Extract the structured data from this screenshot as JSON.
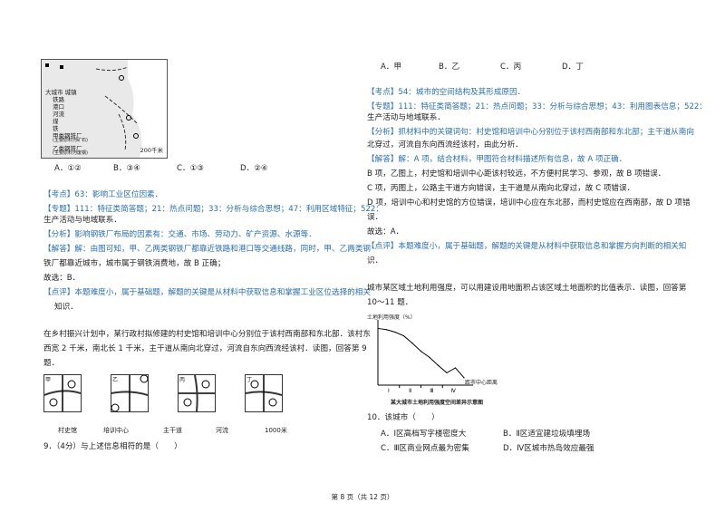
{
  "left": {
    "map_legend": [
      "大城市 城镇",
      "铁路",
      "港口",
      "河流",
      "煤",
      "铁",
      "甲类钢铁厂",
      "(主要原料为矿石)",
      "乙类钢铁厂",
      "(主要原料为废钢)"
    ],
    "map_scale": "200千米",
    "q8_options": [
      "A．①②",
      "B．③④",
      "C．①③",
      "D．②④"
    ],
    "q8_kaodian": "【考点】63：影响工业区位因素．",
    "q8_zhuanti_1": "【专题】111：特征类简答题；21：热点问题；33：分析与综合思想；47：利用区域特征；522：",
    "q8_zhuanti_2": "生产活动与地域联系．",
    "q8_fenxi": "【分析】影响钢铁厂布局的因素有：交通、市场、劳动力、矿产资源、水源等．",
    "q8_jieda_1": "【解答】解：由图可知，甲、乙两类钢铁厂都靠近铁路和港口等交通线路，同时，甲、乙两类钢",
    "q8_jieda_2": "铁厂都靠近城市，城市属于钢铁消费地，故 B 正确；",
    "q8_guxuan": "故选：B．",
    "q8_dianping_1": "【点评】本题难度小，属于基础题，解题的关键是从材料中获取信息和掌握工业区位选择的相关",
    "q8_dianping_2": "知识．",
    "q9_stem_1": "在乡村振兴计划中，某行政村拟修建的村史馆和培训中心分别位于该村西南部和东北部．该村东",
    "q9_stem_2": "西宽 2 千米，南北长 1 千米，主干道从南向北穿过，河流自东向西流经该村．读图，回答第 9",
    "q9_stem_3": "题．",
    "panels": [
      "甲",
      "乙",
      "丙",
      "丁"
    ],
    "panel_legend": [
      "村史馆",
      "培训中心",
      "主干道",
      "河流"
    ],
    "panel_scale": "1000米",
    "q9_question": "9．（4分）与上述信息相符的是（　　）",
    "footer": "第 8 页（共 12 页）"
  },
  "right": {
    "q9_options": [
      "A．甲",
      "B．乙",
      "C．丙",
      "D．丁"
    ],
    "q9_kaodian": "【考点】54：城市的空间结构及其形成原因．",
    "q9_zhuanti_1": "【专题】111：特征类简答题；21：热点问题；33：分析与综合思想；43：利用图表信息；522：",
    "q9_zhuanti_2": "生产活动与地域联系．",
    "q9_fenxi_1": "【分析】抓材料中的关键词句：村史馆和培训中心分别位于该村西南部和东北部；主干道从南向",
    "q9_fenxi_2": "北穿过，河流自东向西流经该村，由此分析．",
    "q9_jieda_1": "【解答】解：A 项，结合材料，甲图符合材料描述所有信息，故 A 项正确．",
    "q9_b": "B 项，乙图上，村史馆和培训中心距该村较远，不方便村民学习、参观，故 B 项错误．",
    "q9_c": "C 项，丙图上，公路主干道方向错误，主干道是从南向北穿过，故 C 项错误．",
    "q9_d_1": "D 项，培训中心和村史馆的方位错误，培训中心应在东北部，而村史馆应在西南部，故 D 项错",
    "q9_d_2": "误．",
    "q9_guxuan": "故选：A．",
    "q9_dianping_1": "【点评】本题难度小，属于基础题，解题的关键是从材料中获取信息和掌握方向判断的相关知",
    "q9_dianping_2": "识．",
    "q10_stem_1": "城市某区域土地利用强度，可以用建设用地面积占该区域土地面积的比值表示．读图，回答第",
    "q10_stem_2": "10～11 题．",
    "chart_ylabel": "土地利用强度（%）",
    "chart_xlabel": "距市中心距离",
    "chart_caption": "某大城市土地利用强度空间差异示意图",
    "chart_zones": [
      "Ⅰ",
      "Ⅱ",
      "Ⅲ",
      "Ⅳ"
    ],
    "q10_question": "10．该城市（　　）",
    "q10_options": [
      "A．Ⅰ区高档写字楼密度大",
      "B．Ⅱ区适宜建垃圾填埋场",
      "C．Ⅲ区商业网点最为密集",
      "D．Ⅳ区城市热岛效应最强"
    ]
  },
  "chart_data": {
    "type": "line",
    "title": "某大城市土地利用强度空间差异示意图",
    "ylabel": "土地利用强度（%）",
    "xlabel": "距市中心距离",
    "zones": [
      "Ⅰ",
      "Ⅱ",
      "Ⅲ",
      "Ⅳ"
    ],
    "x": [
      0,
      1,
      2,
      3,
      4,
      5,
      6,
      7,
      8,
      9,
      10
    ],
    "values": [
      92,
      90,
      86,
      80,
      68,
      55,
      45,
      32,
      20,
      28,
      12
    ]
  }
}
